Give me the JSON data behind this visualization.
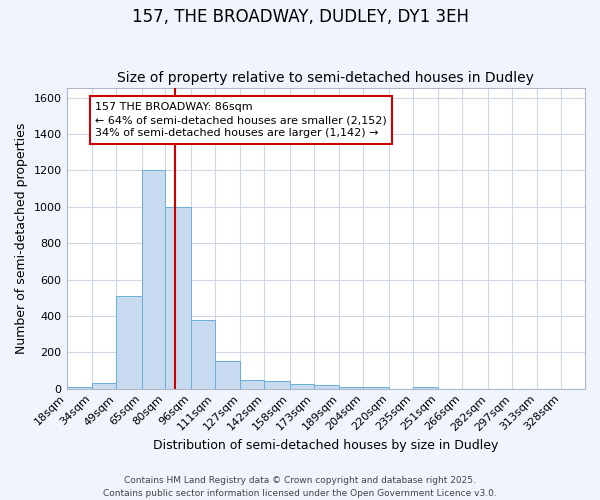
{
  "title": "157, THE BROADWAY, DUDLEY, DY1 3EH",
  "subtitle": "Size of property relative to semi-detached houses in Dudley",
  "xlabel": "Distribution of semi-detached houses by size in Dudley",
  "ylabel": "Number of semi-detached properties",
  "bin_labels": [
    "18sqm",
    "34sqm",
    "49sqm",
    "65sqm",
    "80sqm",
    "96sqm",
    "111sqm",
    "127sqm",
    "142sqm",
    "158sqm",
    "173sqm",
    "189sqm",
    "204sqm",
    "220sqm",
    "235sqm",
    "251sqm",
    "266sqm",
    "282sqm",
    "297sqm",
    "313sqm",
    "328sqm"
  ],
  "bin_edges": [
    18,
    34,
    49,
    65,
    80,
    96,
    111,
    127,
    142,
    158,
    173,
    189,
    204,
    220,
    235,
    251,
    266,
    282,
    297,
    313,
    328
  ],
  "bar_heights": [
    10,
    30,
    510,
    1200,
    1000,
    375,
    150,
    50,
    40,
    28,
    20,
    12,
    10,
    0,
    8,
    0,
    0,
    0,
    0,
    0
  ],
  "bar_color": "#c8daef",
  "bar_edge_color": "#6aaed6",
  "plot_bg_color": "#ffffff",
  "fig_bg_color": "#f0f4fc",
  "grid_color": "#d0d8e8",
  "vline_x": 86,
  "vline_color": "#cc0000",
  "annotation_line1": "157 THE BROADWAY: 86sqm",
  "annotation_line2": "← 64% of semi-detached houses are smaller (2,152)",
  "annotation_line3": "34% of semi-detached houses are larger (1,142) →",
  "annotation_box_color": "#ffffff",
  "annotation_box_edge": "#cc0000",
  "ylim": [
    0,
    1650
  ],
  "yticks": [
    0,
    200,
    400,
    600,
    800,
    1000,
    1200,
    1400,
    1600
  ],
  "footnote1": "Contains HM Land Registry data © Crown copyright and database right 2025.",
  "footnote2": "Contains public sector information licensed under the Open Government Licence v3.0.",
  "title_fontsize": 12,
  "subtitle_fontsize": 10,
  "label_fontsize": 9,
  "tick_fontsize": 8,
  "annot_fontsize": 8,
  "footnote_fontsize": 6.5
}
